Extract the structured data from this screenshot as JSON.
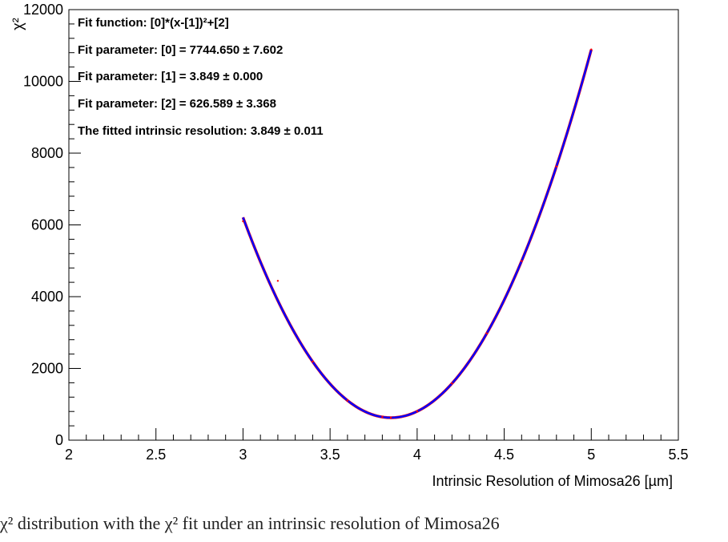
{
  "chart_data": {
    "type": "line",
    "xlabel": "Intrinsic Resolution of Mimosa26 [µm]",
    "ylabel": "χ²",
    "xlim": [
      2,
      5.5
    ],
    "ylim": [
      0,
      12000
    ],
    "x_ticks": [
      "2",
      "2.5",
      "3",
      "3.5",
      "4",
      "4.5",
      "5",
      "5.5"
    ],
    "y_ticks": [
      "0",
      "2000",
      "4000",
      "6000",
      "8000",
      "10000",
      "12000"
    ],
    "grid": false,
    "fit_function": {
      "a": 7744.65,
      "b": 3.849,
      "c": 626.589,
      "x_range": [
        3.0,
        5.0
      ]
    },
    "series": [
      {
        "color": "#ff0000",
        "x": [
          3.0,
          3.2,
          3.4,
          3.6,
          3.8,
          3.849,
          4.0,
          4.2,
          4.4,
          4.6,
          4.8,
          5.0
        ],
        "y": [
          6100,
          4440,
          2190,
          1107,
          646,
          627,
          803,
          1581,
          2977,
          4993,
          7627,
          10890
        ]
      }
    ],
    "annotations": [
      "Fit function: [0]*(x-[1])²+[2]",
      "Fit parameter: [0] = 7744.650 ± 7.602",
      "Fit parameter: [1] = 3.849 ± 0.000",
      "Fit parameter: [2] = 626.589 ± 3.368",
      "The fitted intrinsic resolution: 3.849 ± 0.011"
    ],
    "data_color": "#ff0000",
    "fit_color": "#0000ff"
  },
  "caption": "χ² distribution with the χ² fit under an intrinsic resolution of Mimosa26"
}
